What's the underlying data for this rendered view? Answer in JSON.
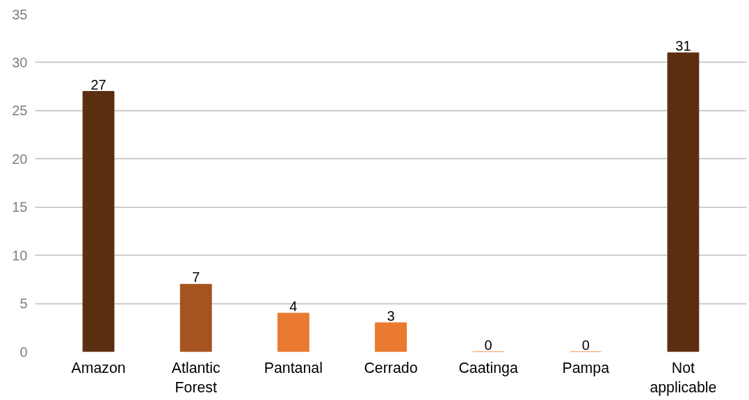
{
  "chart_data": {
    "type": "bar",
    "categories": [
      "Amazon",
      "Atlantic Forest",
      "Pantanal",
      "Cerrado",
      "Caatinga",
      "Pampa",
      "Not applicable"
    ],
    "values": [
      27,
      7,
      4,
      3,
      0,
      0,
      31
    ],
    "colors": [
      "#5c2e10",
      "#a5531f",
      "#ea7a2f",
      "#ea7a2f",
      "#ea7a2f",
      "#ea7a2f",
      "#5c2e10"
    ],
    "ylim": [
      0,
      35
    ],
    "yticks": [
      0,
      5,
      10,
      15,
      20,
      25,
      30,
      35
    ],
    "grid": "y",
    "data_labels": true
  }
}
